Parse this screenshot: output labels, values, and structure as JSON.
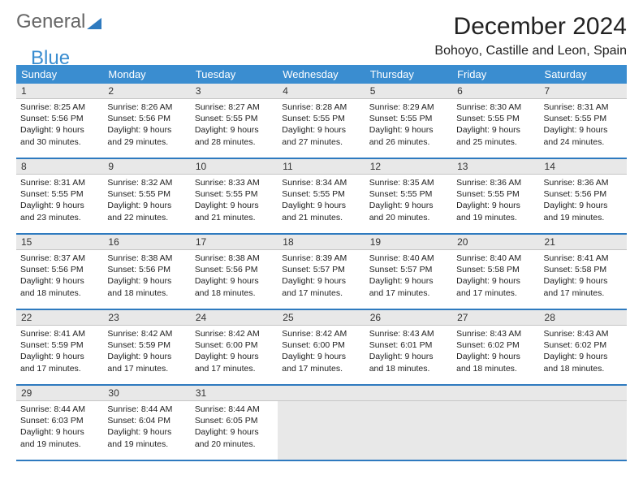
{
  "logo": {
    "general": "General",
    "blue": "Blue"
  },
  "title": "December 2024",
  "subtitle": "Bohoyo, Castille and Leon, Spain",
  "day_headers": [
    "Sunday",
    "Monday",
    "Tuesday",
    "Wednesday",
    "Thursday",
    "Friday",
    "Saturday"
  ],
  "colors": {
    "header_bg": "#3a8dd0",
    "border": "#2e7abf",
    "blank_bg": "#e8e8e8"
  },
  "weeks": [
    [
      {
        "n": "1",
        "sunrise": "8:25 AM",
        "sunset": "5:56 PM",
        "day_h": "9",
        "day_m": "30"
      },
      {
        "n": "2",
        "sunrise": "8:26 AM",
        "sunset": "5:56 PM",
        "day_h": "9",
        "day_m": "29"
      },
      {
        "n": "3",
        "sunrise": "8:27 AM",
        "sunset": "5:55 PM",
        "day_h": "9",
        "day_m": "28"
      },
      {
        "n": "4",
        "sunrise": "8:28 AM",
        "sunset": "5:55 PM",
        "day_h": "9",
        "day_m": "27"
      },
      {
        "n": "5",
        "sunrise": "8:29 AM",
        "sunset": "5:55 PM",
        "day_h": "9",
        "day_m": "26"
      },
      {
        "n": "6",
        "sunrise": "8:30 AM",
        "sunset": "5:55 PM",
        "day_h": "9",
        "day_m": "25"
      },
      {
        "n": "7",
        "sunrise": "8:31 AM",
        "sunset": "5:55 PM",
        "day_h": "9",
        "day_m": "24"
      }
    ],
    [
      {
        "n": "8",
        "sunrise": "8:31 AM",
        "sunset": "5:55 PM",
        "day_h": "9",
        "day_m": "23"
      },
      {
        "n": "9",
        "sunrise": "8:32 AM",
        "sunset": "5:55 PM",
        "day_h": "9",
        "day_m": "22"
      },
      {
        "n": "10",
        "sunrise": "8:33 AM",
        "sunset": "5:55 PM",
        "day_h": "9",
        "day_m": "21"
      },
      {
        "n": "11",
        "sunrise": "8:34 AM",
        "sunset": "5:55 PM",
        "day_h": "9",
        "day_m": "21"
      },
      {
        "n": "12",
        "sunrise": "8:35 AM",
        "sunset": "5:55 PM",
        "day_h": "9",
        "day_m": "20"
      },
      {
        "n": "13",
        "sunrise": "8:36 AM",
        "sunset": "5:55 PM",
        "day_h": "9",
        "day_m": "19"
      },
      {
        "n": "14",
        "sunrise": "8:36 AM",
        "sunset": "5:56 PM",
        "day_h": "9",
        "day_m": "19"
      }
    ],
    [
      {
        "n": "15",
        "sunrise": "8:37 AM",
        "sunset": "5:56 PM",
        "day_h": "9",
        "day_m": "18"
      },
      {
        "n": "16",
        "sunrise": "8:38 AM",
        "sunset": "5:56 PM",
        "day_h": "9",
        "day_m": "18"
      },
      {
        "n": "17",
        "sunrise": "8:38 AM",
        "sunset": "5:56 PM",
        "day_h": "9",
        "day_m": "18"
      },
      {
        "n": "18",
        "sunrise": "8:39 AM",
        "sunset": "5:57 PM",
        "day_h": "9",
        "day_m": "17"
      },
      {
        "n": "19",
        "sunrise": "8:40 AM",
        "sunset": "5:57 PM",
        "day_h": "9",
        "day_m": "17"
      },
      {
        "n": "20",
        "sunrise": "8:40 AM",
        "sunset": "5:58 PM",
        "day_h": "9",
        "day_m": "17"
      },
      {
        "n": "21",
        "sunrise": "8:41 AM",
        "sunset": "5:58 PM",
        "day_h": "9",
        "day_m": "17"
      }
    ],
    [
      {
        "n": "22",
        "sunrise": "8:41 AM",
        "sunset": "5:59 PM",
        "day_h": "9",
        "day_m": "17"
      },
      {
        "n": "23",
        "sunrise": "8:42 AM",
        "sunset": "5:59 PM",
        "day_h": "9",
        "day_m": "17"
      },
      {
        "n": "24",
        "sunrise": "8:42 AM",
        "sunset": "6:00 PM",
        "day_h": "9",
        "day_m": "17"
      },
      {
        "n": "25",
        "sunrise": "8:42 AM",
        "sunset": "6:00 PM",
        "day_h": "9",
        "day_m": "17"
      },
      {
        "n": "26",
        "sunrise": "8:43 AM",
        "sunset": "6:01 PM",
        "day_h": "9",
        "day_m": "18"
      },
      {
        "n": "27",
        "sunrise": "8:43 AM",
        "sunset": "6:02 PM",
        "day_h": "9",
        "day_m": "18"
      },
      {
        "n": "28",
        "sunrise": "8:43 AM",
        "sunset": "6:02 PM",
        "day_h": "9",
        "day_m": "18"
      }
    ],
    [
      {
        "n": "29",
        "sunrise": "8:44 AM",
        "sunset": "6:03 PM",
        "day_h": "9",
        "day_m": "19"
      },
      {
        "n": "30",
        "sunrise": "8:44 AM",
        "sunset": "6:04 PM",
        "day_h": "9",
        "day_m": "19"
      },
      {
        "n": "31",
        "sunrise": "8:44 AM",
        "sunset": "6:05 PM",
        "day_h": "9",
        "day_m": "20"
      },
      null,
      null,
      null,
      null
    ]
  ],
  "labels": {
    "sunrise": "Sunrise:",
    "sunset": "Sunset:",
    "daylight_prefix": "Daylight:",
    "hours": "hours",
    "and": "and",
    "minutes": "minutes."
  }
}
